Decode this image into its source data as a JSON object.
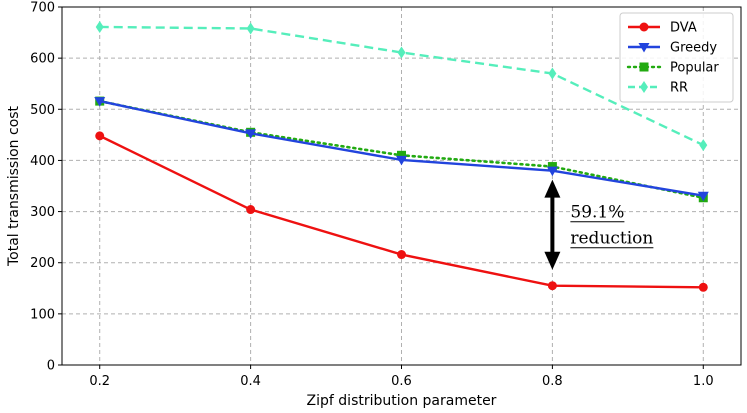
{
  "chart_data": {
    "type": "line",
    "xlabel": "Zipf distribution parameter",
    "ylabel": "Total transmission cost",
    "x": [
      0.2,
      0.4,
      0.6,
      0.8,
      1.0
    ],
    "xticks": [
      "0.2",
      "0.4",
      "0.6",
      "0.8",
      "1.0"
    ],
    "yticks": [
      "0",
      "100",
      "200",
      "300",
      "400",
      "500",
      "600",
      "700"
    ],
    "xlim": [
      0.15,
      1.05
    ],
    "ylim": [
      0,
      700
    ],
    "grid": true,
    "legend_position": "top-right",
    "series": [
      {
        "name": "DVA",
        "color": "#ee1111",
        "marker": "circle",
        "line": "solid",
        "values": [
          448,
          304,
          216,
          155,
          152
        ]
      },
      {
        "name": "Greedy",
        "color": "#2244dd",
        "marker": "triangle-down",
        "line": "solid",
        "values": [
          516,
          453,
          401,
          380,
          331
        ]
      },
      {
        "name": "Popular",
        "color": "#22aa11",
        "marker": "square",
        "line": "dotted",
        "values": [
          516,
          455,
          410,
          388,
          327
        ]
      },
      {
        "name": "RR",
        "color": "#55eebb",
        "marker": "diamond",
        "line": "dashed",
        "values": [
          661,
          658,
          611,
          570,
          430
        ]
      }
    ],
    "annotation": {
      "lines": [
        "59.1%",
        "reduction"
      ],
      "x": 0.8,
      "from": 155,
      "to": 380
    }
  }
}
